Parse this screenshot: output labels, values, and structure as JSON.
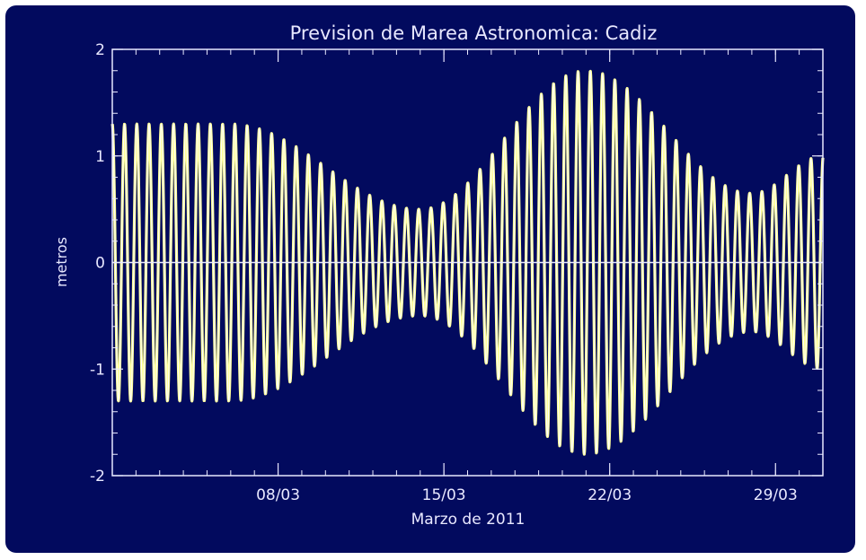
{
  "chart_data": {
    "type": "line",
    "title": "Prevision de Marea Astronomica: Cadiz",
    "xlabel": "Marzo de 2011",
    "ylabel": "metros",
    "x_range": [
      "2011-03-01",
      "2011-03-31"
    ],
    "ylim": [
      -2,
      2
    ],
    "y_ticks": [
      {
        "value": 2,
        "label": "2"
      },
      {
        "value": 1,
        "label": "1"
      },
      {
        "value": 0,
        "label": "0"
      },
      {
        "value": -1,
        "label": "-1"
      },
      {
        "value": -2,
        "label": "-2"
      }
    ],
    "x_ticks": [
      {
        "date": "2011-03-08",
        "label": "08/03"
      },
      {
        "date": "2011-03-15",
        "label": "15/03"
      },
      {
        "date": "2011-03-22",
        "label": "22/03"
      },
      {
        "date": "2011-03-29",
        "label": "29/03"
      }
    ],
    "zero_line": true,
    "series": [
      {
        "color": "#ffff99",
        "spring_tide_peaks": [
          {
            "date": "2011-03-06",
            "amplitude": 1.3
          },
          {
            "date": "2011-03-21",
            "amplitude": 1.8
          },
          {
            "date": "2011-03-31",
            "amplitude": 1.0
          }
        ],
        "neap_tide_troughs": [
          {
            "date": "2011-03-14",
            "amplitude": 0.5
          },
          {
            "date": "2011-03-28",
            "amplitude": 0.65
          }
        ]
      }
    ]
  },
  "colors": {
    "background": "#020a5e",
    "axes": "#e8e8ff",
    "curve": "#ffff99"
  }
}
